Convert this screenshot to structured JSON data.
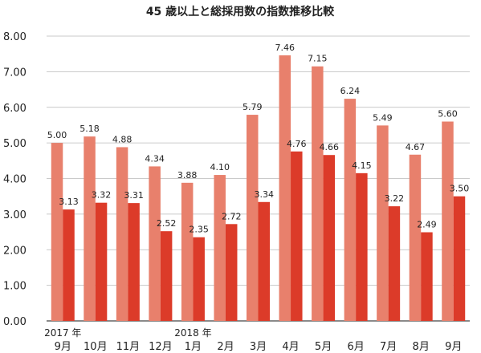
{
  "chart_data": {
    "type": "bar",
    "title": "45 歳以上と総採用数の指数推移比較",
    "xlabel": "",
    "ylabel": "",
    "ylim": [
      0,
      8
    ],
    "yticks": [
      "0.00",
      "1.00",
      "2.00",
      "3.00",
      "4.00",
      "5.00",
      "6.00",
      "7.00",
      "8.00"
    ],
    "ytick_values": [
      0,
      1,
      2,
      3,
      4,
      5,
      6,
      7,
      8
    ],
    "categories": [
      "9月",
      "10月",
      "11月",
      "12月",
      "1月",
      "2月",
      "3月",
      "4月",
      "5月",
      "6月",
      "7月",
      "8月",
      "9月"
    ],
    "year_markers": [
      {
        "index": 0,
        "label": "2017 年"
      },
      {
        "index": 4,
        "label": "2018 年"
      }
    ],
    "series": [
      {
        "values": [
          5.0,
          5.18,
          4.88,
          4.34,
          3.88,
          4.1,
          5.79,
          7.46,
          7.15,
          6.24,
          5.49,
          4.67,
          5.6
        ],
        "labels": [
          "5.00",
          "5.18",
          "4.88",
          "4.34",
          "3.88",
          "4.10",
          "5.79",
          "7.46",
          "7.15",
          "6.24",
          "5.49",
          "4.67",
          "5.60"
        ],
        "color": "#e8806c"
      },
      {
        "values": [
          3.13,
          3.32,
          3.31,
          2.52,
          2.35,
          2.72,
          3.34,
          4.76,
          4.66,
          4.15,
          3.22,
          2.49,
          3.5
        ],
        "labels": [
          "3.13",
          "3.32",
          "3.31",
          "2.52",
          "2.35",
          "2.72",
          "3.34",
          "4.76",
          "4.66",
          "4.15",
          "3.22",
          "2.49",
          "3.50"
        ],
        "color": "#dc3b29"
      }
    ],
    "grid": true,
    "legend": "none"
  }
}
